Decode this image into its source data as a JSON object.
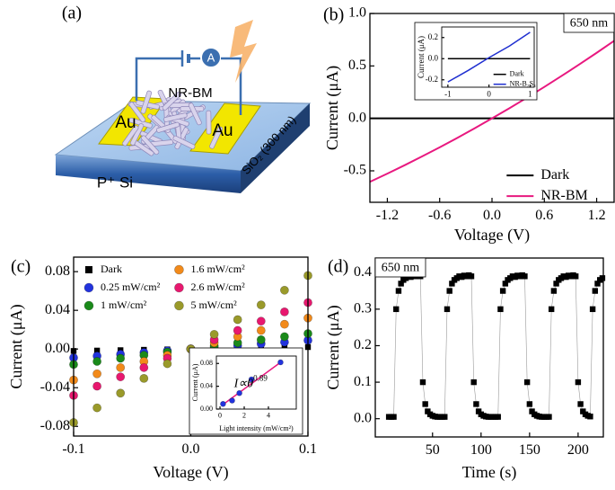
{
  "diagram": {
    "panel_label": "(a)",
    "ammeter": "A",
    "material": "NR-BM",
    "electrode_left": "Au",
    "electrode_right": "Au",
    "oxide": "SiO₂ (300 nm)",
    "substrate": "P⁺ Si"
  },
  "chart_data": [
    {
      "type": "line",
      "label": "(b)",
      "xlabel": "Voltage (V)",
      "ylabel": "Current (μA)",
      "x": [
        -1.4,
        -1.2,
        -1.0,
        -0.8,
        -0.6,
        -0.4,
        -0.2,
        0,
        0.2,
        0.4,
        0.6,
        0.8,
        1.0,
        1.2,
        1.4
      ],
      "series": [
        {
          "name": "Dark",
          "color": "#000000",
          "values": [
            0,
            0,
            0,
            0,
            0,
            0,
            0,
            0,
            0,
            0,
            0,
            0,
            0,
            0,
            0
          ]
        },
        {
          "name": "NR-BM",
          "color": "#e8187f",
          "values": [
            -0.605,
            -0.527,
            -0.446,
            -0.362,
            -0.276,
            -0.187,
            -0.095,
            0,
            0.097,
            0.197,
            0.3,
            0.406,
            0.514,
            0.625,
            0.739
          ]
        }
      ],
      "xlim": [
        -1.4,
        1.4
      ],
      "xticks": [
        -1.2,
        -0.6,
        {
          "value": 0,
          "label": "0.0"
        },
        0.6,
        1.2
      ],
      "ylim": [
        -0.8,
        1.0
      ],
      "yticks": [
        -0.5,
        {
          "value": 0,
          "label": "0.0"
        },
        0.5,
        {
          "value": 1,
          "label": "1.0"
        }
      ],
      "legend": "lower right",
      "annotation": "650 nm",
      "annotation_corner": "upper right",
      "annotation_box": true
    },
    {
      "type": "line",
      "ylabel": "Current (μA)",
      "x": [
        -1,
        -0.5,
        0,
        0.5,
        1
      ],
      "series": [
        {
          "name": "Dark",
          "color": "#000000",
          "values": [
            0,
            0,
            0,
            0,
            0
          ]
        },
        {
          "name": "NR-B₂S₃",
          "color": "#1f2fd0",
          "values": [
            -0.22,
            -0.11,
            0.01,
            0.12,
            0.25
          ]
        }
      ],
      "xlim": [
        -1.15,
        1.1
      ],
      "xticks": [
        -1,
        0,
        1
      ],
      "ylim": [
        -0.27,
        0.3
      ],
      "yticks": [
        -0.2,
        {
          "value": 0,
          "label": "0.0"
        },
        0.2
      ],
      "legend": "lower right"
    },
    {
      "type": "scatter",
      "label": "(c)",
      "xlabel": "Voltage (V)",
      "ylabel": "Current (μA)",
      "x": [
        -0.1,
        -0.08,
        -0.06,
        -0.04,
        -0.02,
        0,
        0.02,
        0.04,
        0.06,
        0.08,
        0.1
      ],
      "series": [
        {
          "name": "Dark",
          "color": "#000000",
          "marker": "square",
          "values": [
            -0.002,
            -0.0016,
            -0.0012,
            -0.0008,
            -0.0004,
            0,
            0.0004,
            0.0008,
            0.0012,
            0.0016,
            0.002
          ]
        },
        {
          "name": "0.25 mW/cm²",
          "color": "#2233dd",
          "marker": "circle",
          "values": [
            -0.009,
            -0.0072,
            -0.0054,
            -0.0036,
            -0.0018,
            0,
            0.0018,
            0.0036,
            0.0054,
            0.0072,
            0.009
          ]
        },
        {
          "name": "1 mW/cm²",
          "color": "#1a8a1a",
          "marker": "circle",
          "values": [
            -0.016,
            -0.0128,
            -0.0096,
            -0.0064,
            -0.0032,
            0,
            0.0032,
            0.0064,
            0.0096,
            0.0128,
            0.016
          ]
        },
        {
          "name": "1.6 mW/cm²",
          "color": "#f28a1a",
          "marker": "circle",
          "values": [
            -0.032,
            -0.0256,
            -0.0192,
            -0.0128,
            -0.0064,
            0,
            0.0064,
            0.0128,
            0.0192,
            0.0256,
            0.032
          ]
        },
        {
          "name": "2.6 mW/cm²",
          "color": "#e8186f",
          "marker": "circle",
          "values": [
            -0.048,
            -0.0384,
            -0.0288,
            -0.0192,
            -0.0096,
            0,
            0.0096,
            0.0192,
            0.0288,
            0.0384,
            0.048
          ]
        },
        {
          "name": "5 mW/cm²",
          "color": "#9a9a2a",
          "marker": "circle",
          "values": [
            -0.076,
            -0.0608,
            -0.0456,
            -0.0304,
            -0.0152,
            0,
            0.0152,
            0.0304,
            0.0456,
            0.0608,
            0.076
          ]
        }
      ],
      "xlim": [
        -0.1,
        0.1
      ],
      "xticks": [
        -0.1,
        {
          "value": 0,
          "label": "0.0"
        },
        0.1
      ],
      "ylim": [
        -0.09,
        0.095
      ],
      "yticks": [
        -0.08,
        -0.04,
        {
          "value": 0,
          "label": "0.00"
        },
        0.04,
        0.08
      ],
      "legend": "upper left"
    },
    {
      "type": "scatter",
      "xlabel": "Light intensity (mW/cm²)",
      "ylabel": "Current (μA)",
      "x": [
        0.25,
        1,
        1.6,
        2.6,
        5
      ],
      "series": [
        {
          "color": "#2233dd",
          "marker": "circle",
          "values": [
            0.009,
            0.015,
            0.028,
            0.052,
            0.082
          ]
        }
      ],
      "fit_line": {
        "color": "#e8187f",
        "x": [
          0.25,
          5
        ],
        "values": [
          0.008,
          0.082
        ]
      },
      "xlim": [
        -0.3,
        6.3
      ],
      "xticks": [
        0,
        2,
        4
      ],
      "ylim": [
        0,
        0.093
      ],
      "yticks": [
        {
          "value": 0,
          "label": "0.00"
        },
        0.04,
        0.08
      ],
      "annotation": "I∝θ",
      "annotation_exponent": "0.89",
      "annotation_corner": "middle",
      "annotation_box": false
    },
    {
      "type": "scatter",
      "label": "(d)",
      "xlabel": "Time (s)",
      "ylabel": "Current (μA)",
      "connect": true,
      "x": [
        5,
        7.5,
        10,
        12.5,
        15,
        17.5,
        20,
        22.5,
        25,
        27.5,
        30,
        32.5,
        35,
        37.5,
        40,
        42.5,
        45,
        47.5,
        50,
        52.5,
        55,
        57.5,
        60,
        62.5,
        65,
        67.5,
        70,
        72.5,
        75,
        77.5,
        80,
        82.5,
        85,
        87.5,
        90,
        92.5,
        95,
        97.5,
        100,
        102.5,
        105,
        107.5,
        110,
        112.5,
        115,
        117.5,
        120,
        122.5,
        125,
        127.5,
        130,
        132.5,
        135,
        137.5,
        140,
        142.5,
        145,
        147.5,
        150,
        152.5,
        155,
        157.5,
        160,
        162.5,
        165,
        167.5,
        170,
        172.5,
        175,
        177.5,
        180,
        182.5,
        185,
        187.5,
        190,
        192.5,
        195,
        197.5,
        200,
        202.5,
        205,
        207.5,
        210,
        212.5,
        215,
        217.5,
        220,
        222.5,
        225
      ],
      "series": [
        {
          "color": "#000000",
          "marker": "square",
          "values": [
            0.005,
            0.005,
            0.005,
            0.3,
            0.35,
            0.37,
            0.38,
            0.385,
            0.39,
            0.388,
            0.392,
            0.39,
            0.393,
            0.39,
            0.1,
            0.04,
            0.02,
            0.012,
            0.008,
            0.006,
            0.005,
            0.005,
            0.005,
            0.005,
            0.3,
            0.35,
            0.37,
            0.38,
            0.385,
            0.39,
            0.388,
            0.392,
            0.39,
            0.393,
            0.39,
            0.1,
            0.04,
            0.02,
            0.012,
            0.008,
            0.006,
            0.005,
            0.005,
            0.005,
            0.005,
            0.005,
            0.3,
            0.35,
            0.37,
            0.38,
            0.385,
            0.39,
            0.388,
            0.392,
            0.39,
            0.393,
            0.39,
            0.1,
            0.04,
            0.02,
            0.012,
            0.008,
            0.006,
            0.005,
            0.005,
            0.005,
            0.005,
            0.3,
            0.35,
            0.37,
            0.38,
            0.385,
            0.39,
            0.388,
            0.392,
            0.39,
            0.393,
            0.39,
            0.1,
            0.04,
            0.02,
            0.012,
            0.008,
            0.006,
            0.3,
            0.35,
            0.37,
            0.38,
            0.385
          ]
        }
      ],
      "xlim": [
        -9,
        226
      ],
      "xticks": [
        50,
        100,
        150,
        200
      ],
      "ylim": [
        -0.05,
        0.44
      ],
      "yticks": [
        {
          "value": 0,
          "label": "0.0"
        },
        0.1,
        0.2,
        0.3,
        0.4
      ],
      "annotation": "650 nm",
      "annotation_corner": "upper left",
      "annotation_box": true
    }
  ]
}
